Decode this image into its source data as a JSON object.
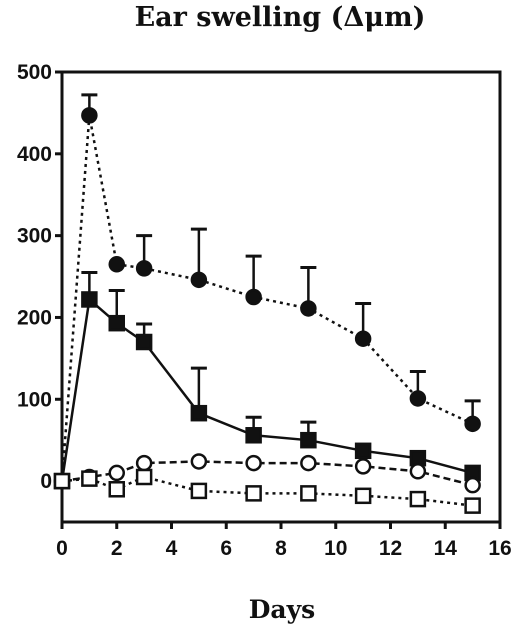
{
  "chart_data": {
    "type": "line",
    "title": "Ear swelling (Δμm)",
    "xlabel": "Days",
    "ylabel": "",
    "xlim": [
      0,
      16
    ],
    "ylim": [
      -50,
      500
    ],
    "xticks": [
      0,
      2,
      4,
      6,
      8,
      10,
      12,
      14,
      16
    ],
    "yticks": [
      0,
      100,
      200,
      300,
      400,
      500
    ],
    "grid": false,
    "legend": "none",
    "series": [
      {
        "marker": "filled-circle",
        "line": "dotted",
        "color": "#111111",
        "x": [
          0,
          1,
          2,
          3,
          5,
          7,
          9,
          11,
          13,
          15
        ],
        "y": [
          0,
          447,
          265,
          260,
          246,
          225,
          211,
          174,
          101,
          70
        ],
        "err": [
          0,
          25,
          0,
          40,
          62,
          50,
          50,
          43,
          33,
          28
        ]
      },
      {
        "marker": "filled-square",
        "line": "solid",
        "color": "#111111",
        "x": [
          0,
          1,
          2,
          3,
          5,
          7,
          9,
          11,
          13,
          15
        ],
        "y": [
          0,
          222,
          193,
          170,
          83,
          56,
          50,
          37,
          28,
          10
        ],
        "err": [
          0,
          33,
          40,
          22,
          55,
          22,
          22,
          0,
          0,
          0
        ]
      },
      {
        "marker": "open-circle",
        "line": "dashed",
        "color": "#111111",
        "x": [
          0,
          1,
          2,
          3,
          5,
          7,
          9,
          11,
          13,
          15
        ],
        "y": [
          0,
          5,
          10,
          22,
          24,
          22,
          22,
          18,
          12,
          -5
        ],
        "err": [
          0,
          0,
          0,
          0,
          0,
          0,
          0,
          0,
          0,
          0
        ]
      },
      {
        "marker": "open-square",
        "line": "dotted",
        "color": "#111111",
        "x": [
          0,
          1,
          2,
          3,
          5,
          7,
          9,
          11,
          13,
          15
        ],
        "y": [
          0,
          3,
          -10,
          5,
          -12,
          -15,
          -15,
          -18,
          -22,
          -30
        ],
        "err": [
          0,
          0,
          0,
          0,
          0,
          0,
          0,
          0,
          0,
          0
        ]
      }
    ]
  }
}
